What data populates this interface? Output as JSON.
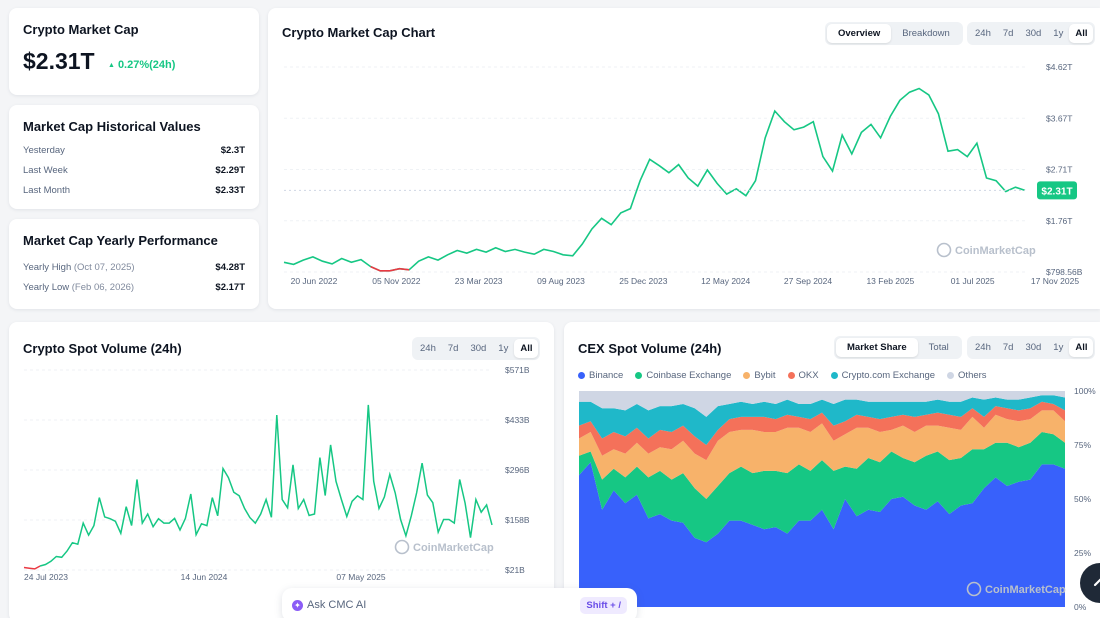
{
  "market_cap": {
    "title": "Crypto Market Cap",
    "value": "$2.31T",
    "change": "0.27%(24h)",
    "change_color": "#16c784"
  },
  "historical": {
    "title": "Market Cap Historical Values",
    "rows": [
      {
        "label": "Yesterday",
        "value": "$2.3T"
      },
      {
        "label": "Last Week",
        "value": "$2.29T"
      },
      {
        "label": "Last Month",
        "value": "$2.33T"
      }
    ]
  },
  "yearly": {
    "title": "Market Cap Yearly Performance",
    "high_label": "Yearly High",
    "high_date": "(Oct 07, 2025)",
    "high_value": "$4.28T",
    "low_label": "Yearly Low",
    "low_date": "(Feb 06, 2026)",
    "low_value": "$2.17T"
  },
  "mcap_chart": {
    "title": "Crypto Market Cap Chart",
    "view_tabs": [
      "Overview",
      "Breakdown"
    ],
    "active_view": "Overview",
    "range_tabs": [
      "24h",
      "7d",
      "30d",
      "1y",
      "All"
    ],
    "active_range": "All",
    "current_badge": "$2.31T",
    "watermark": "CoinMarketCap"
  },
  "spot_chart": {
    "title": "Crypto Spot Volume (24h)",
    "range_tabs": [
      "24h",
      "7d",
      "30d",
      "1y",
      "All"
    ],
    "active_range": "All",
    "watermark": "CoinMarketCap"
  },
  "cex_chart": {
    "title": "CEX Spot Volume (24h)",
    "view_tabs": [
      "Market Share",
      "Total"
    ],
    "active_view": "Market Share",
    "range_tabs": [
      "24h",
      "7d",
      "30d",
      "1y",
      "All"
    ],
    "active_range": "All",
    "watermark": "CoinMarketCap"
  },
  "ask": {
    "label": "Ask CMC AI",
    "shortcut": "Shift + /"
  },
  "colors": {
    "up": "#16c784",
    "down": "#ea3943",
    "binance": "#3861fb",
    "coinbase": "#16c784",
    "bybit": "#f7b26a",
    "okx": "#f4715a",
    "cryptocom": "#1fb8c9",
    "others": "#cfd6e4"
  },
  "chart_data": [
    {
      "type": "line",
      "title": "Crypto Market Cap Chart",
      "x_ticks": [
        "20 Jun 2022",
        "05 Nov 2022",
        "23 Mar 2023",
        "09 Aug 2023",
        "25 Dec 2023",
        "12 May 2024",
        "27 Sep 2024",
        "13 Feb 2025",
        "01 Jul 2025",
        "17 Nov 2025"
      ],
      "y_ticks": [
        "$798.56B",
        "$1.76T",
        "$2.71T",
        "$3.67T",
        "$4.62T"
      ],
      "ylim": [
        0.79856,
        4.62
      ],
      "y_unit": "T",
      "series": [
        {
          "values": [
            0.98,
            0.94,
            1.02,
            1.08,
            1.0,
            0.95,
            1.05,
            0.98,
            1.03,
            0.9,
            0.82,
            0.82,
            0.86,
            0.84,
            1.0,
            1.08,
            1.02,
            1.12,
            1.2,
            1.15,
            1.22,
            1.17,
            1.25,
            1.18,
            1.22,
            1.17,
            1.13,
            1.22,
            1.18,
            1.12,
            1.1,
            1.32,
            1.6,
            1.8,
            1.68,
            1.9,
            1.98,
            2.5,
            2.9,
            2.78,
            2.65,
            2.8,
            2.55,
            2.4,
            2.7,
            2.45,
            2.25,
            2.35,
            2.22,
            2.5,
            3.3,
            3.8,
            3.6,
            3.45,
            3.5,
            3.6,
            2.95,
            2.68,
            3.35,
            3.0,
            3.4,
            3.55,
            3.3,
            3.7,
            4.0,
            4.15,
            4.22,
            4.1,
            3.75,
            3.05,
            3.08,
            2.95,
            3.2,
            2.55,
            2.5,
            2.3,
            2.38,
            2.32
          ]
        }
      ]
    },
    {
      "type": "line",
      "title": "Crypto Spot Volume (24h)",
      "x_ticks": [
        "24 Jul 2023",
        "14 Jun 2024",
        "07 May 2025"
      ],
      "y_ticks": [
        "$21B",
        "$158B",
        "$296B",
        "$433B",
        "$571B"
      ],
      "ylim": [
        21,
        571
      ],
      "y_unit": "B",
      "series": [
        {
          "values": [
            28,
            26,
            24,
            32,
            36,
            45,
            58,
            56,
            73,
            96,
            92,
            150,
            117,
            143,
            220,
            167,
            162,
            155,
            122,
            195,
            143,
            270,
            150,
            175,
            140,
            162,
            150,
            150,
            163,
            131,
            163,
            230,
            118,
            148,
            143,
            220,
            170,
            300,
            275,
            235,
            225,
            190,
            165,
            150,
            175,
            215,
            166,
            447,
            215,
            192,
            310,
            190,
            215,
            171,
            175,
            330,
            226,
            365,
            265,
            215,
            168,
            210,
            225,
            215,
            475,
            265,
            190,
            222,
            284,
            233,
            160,
            115,
            170,
            234,
            315,
            227,
            206,
            125,
            160,
            160,
            150,
            270,
            205,
            110,
            215,
            180,
            200,
            145
          ]
        }
      ]
    },
    {
      "type": "area",
      "title": "CEX Spot Volume (24h)",
      "stacked": true,
      "y_ticks": [
        "0%",
        "25%",
        "50%",
        "75%",
        "100%"
      ],
      "ylim": [
        0,
        100
      ],
      "series": [
        {
          "name": "Binance",
          "values": [
            61,
            67,
            45,
            54,
            48,
            52,
            41,
            43,
            40,
            39,
            32,
            30,
            34,
            40,
            40,
            38,
            36,
            37,
            34,
            40,
            40,
            45,
            36,
            50,
            42,
            45,
            44,
            50,
            51,
            47,
            45,
            49,
            43,
            47,
            48,
            55,
            60,
            56,
            58,
            59,
            66,
            66,
            64
          ]
        },
        {
          "name": "Coinbase Exchange",
          "values": [
            9,
            5,
            14,
            10,
            12,
            13,
            19,
            20,
            19,
            23,
            23,
            20,
            22,
            22,
            25,
            24,
            27,
            26,
            28,
            26,
            23,
            23,
            27,
            15,
            22,
            24,
            23,
            22,
            18,
            20,
            25,
            23,
            25,
            22,
            25,
            18,
            16,
            20,
            16,
            17,
            15,
            14,
            12
          ]
        },
        {
          "name": "Bybit",
          "values": [
            8,
            9,
            11,
            9,
            11,
            11,
            11,
            11,
            14,
            15,
            16,
            18,
            21,
            19,
            17,
            20,
            18,
            18,
            21,
            17,
            18,
            17,
            14,
            15,
            19,
            14,
            14,
            10,
            15,
            14,
            14,
            12,
            15,
            13,
            15,
            10,
            13,
            11,
            12,
            11,
            10,
            11,
            10
          ]
        },
        {
          "name": "OKX",
          "values": [
            6,
            5,
            8,
            8,
            8,
            7,
            7,
            8,
            8,
            7,
            8,
            7,
            5,
            6,
            6,
            6,
            7,
            6,
            6,
            5,
            6,
            5,
            7,
            6,
            6,
            5,
            6,
            6,
            5,
            7,
            5,
            6,
            6,
            6,
            4,
            5,
            4,
            5,
            5,
            5,
            4,
            3,
            5
          ]
        },
        {
          "name": "Crypto.com Exchange",
          "values": [
            11,
            9,
            14,
            11,
            12,
            11,
            13,
            11,
            12,
            10,
            13,
            13,
            11,
            7,
            7,
            6,
            7,
            7,
            7,
            6,
            7,
            6,
            10,
            10,
            7,
            7,
            8,
            7,
            6,
            7,
            6,
            6,
            6,
            7,
            5,
            8,
            4,
            4,
            5,
            5,
            3,
            4,
            6
          ]
        },
        {
          "name": "Others",
          "values": [
            5,
            5,
            8,
            8,
            9,
            6,
            9,
            7,
            7,
            6,
            8,
            12,
            7,
            6,
            5,
            6,
            5,
            6,
            4,
            6,
            6,
            4,
            6,
            4,
            4,
            5,
            5,
            5,
            5,
            5,
            5,
            4,
            5,
            5,
            3,
            4,
            3,
            4,
            4,
            3,
            2,
            2,
            3
          ]
        }
      ],
      "legend_position": "top-left"
    }
  ]
}
